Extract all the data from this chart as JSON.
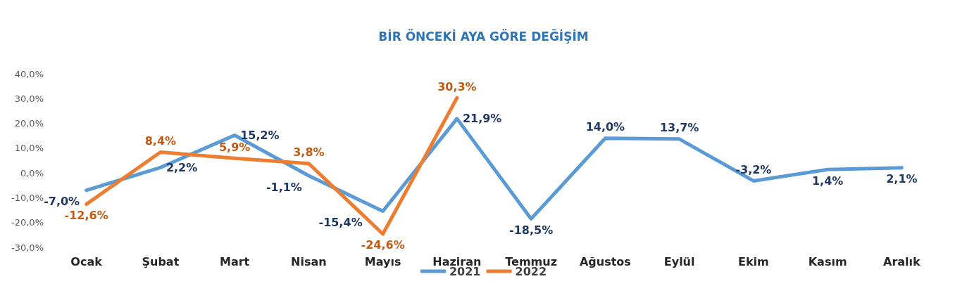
{
  "chart_data": {
    "type": "line",
    "title": "BİR ÖNCEKİ AYA GÖRE DEĞİŞİM",
    "categories": [
      "Ocak",
      "Şubat",
      "Mart",
      "Nisan",
      "Mayıs",
      "Haziran",
      "Temmuz",
      "Ağustos",
      "Eylül",
      "Ekim",
      "Kasım",
      "Aralık"
    ],
    "series": [
      {
        "name": "2021",
        "color": "#5b9bd5",
        "values": [
          -7.0,
          2.2,
          15.2,
          -1.1,
          -15.4,
          21.9,
          -18.5,
          14.0,
          13.7,
          -3.2,
          1.4,
          2.1
        ],
        "value_labels": [
          "-7,0%",
          "2,2%",
          "15,2%",
          "-1,1%",
          "-15,4%",
          "21,9%",
          "-18,5%",
          "14,0%",
          "13,7%",
          "-3,2%",
          "1,4%",
          "2,1%"
        ]
      },
      {
        "name": "2022",
        "color": "#ed7d31",
        "values": [
          -12.6,
          8.4,
          5.9,
          3.8,
          -24.6,
          30.3,
          null,
          null,
          null,
          null,
          null,
          null
        ],
        "value_labels": [
          "-12,6%",
          "8,4%",
          "5,9%",
          "3,8%",
          "-24,6%",
          "30,3%",
          null,
          null,
          null,
          null,
          null,
          null
        ]
      }
    ],
    "ylim": [
      -30,
      40
    ],
    "yticks": [
      {
        "value": -30,
        "label": "-30,0%"
      },
      {
        "value": -20,
        "label": "-20,0%"
      },
      {
        "value": -10,
        "label": "-10,0%"
      },
      {
        "value": 0,
        "label": "0,0%"
      },
      {
        "value": 10,
        "label": "10,0%"
      },
      {
        "value": 20,
        "label": "20,0%"
      },
      {
        "value": 30,
        "label": "30,0%"
      },
      {
        "value": 40,
        "label": "40,0%"
      }
    ],
    "grid": false,
    "legend": "bottom",
    "marker": "none",
    "line_style": "solid"
  }
}
